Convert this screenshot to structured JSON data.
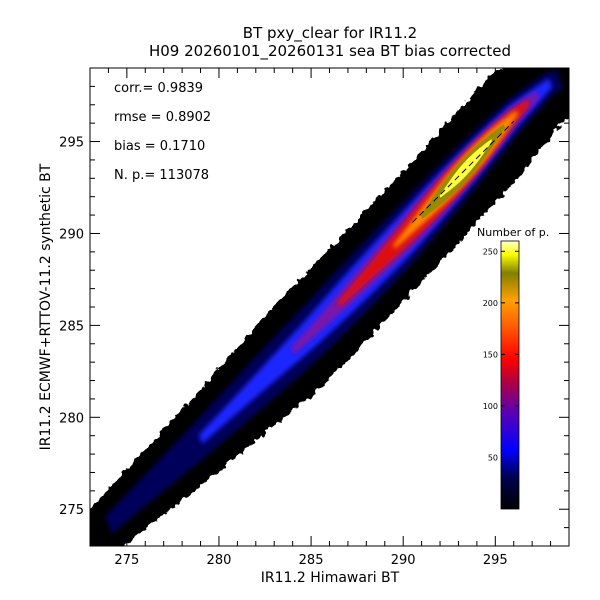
{
  "chart_data": {
    "type": "heatmap",
    "title": "BT pxy_clear for IR11.2",
    "subtitle": "H09 20260101_20260131 sea BT bias corrected",
    "xlabel": "IR11.2 Himawari BT",
    "ylabel": "IR11.2 ECMWF+RTTOV-11.2 synthetic BT",
    "xlim": [
      273,
      299
    ],
    "ylim": [
      273,
      299
    ],
    "xticks": [
      275,
      280,
      285,
      290,
      295
    ],
    "yticks": [
      275,
      280,
      285,
      290,
      295
    ],
    "stats": [
      {
        "label": "corr.=",
        "value": "0.9839"
      },
      {
        "label": "rmse =",
        "value": "0.8902"
      },
      {
        "label": "bias =",
        "value": "0.1710"
      },
      {
        "label": "N. p.=",
        "value": "113078"
      }
    ],
    "colorbar": {
      "title": "Number of p.",
      "range": [
        0,
        260
      ],
      "ticks": [
        50,
        100,
        150,
        200,
        250
      ],
      "colormap": [
        "#000000",
        "#0000ff",
        "#800080",
        "#ff0000",
        "#ff8c00",
        "#808000",
        "#ffff00",
        "#ffffff"
      ]
    },
    "density_ridge": {
      "x": [
        273,
        276,
        279,
        282,
        285,
        288,
        290,
        292,
        294,
        296,
        298,
        299
      ],
      "y": [
        273.2,
        276.0,
        278.8,
        281.7,
        284.6,
        287.7,
        289.8,
        292.0,
        294.2,
        296.4,
        298.2,
        298.6
      ]
    },
    "density_peak": {
      "x": 293.5,
      "y": 293.8
    },
    "fit_line": {
      "x": [
        290.5,
        296
      ],
      "y": [
        290.6,
        296.1
      ]
    }
  }
}
